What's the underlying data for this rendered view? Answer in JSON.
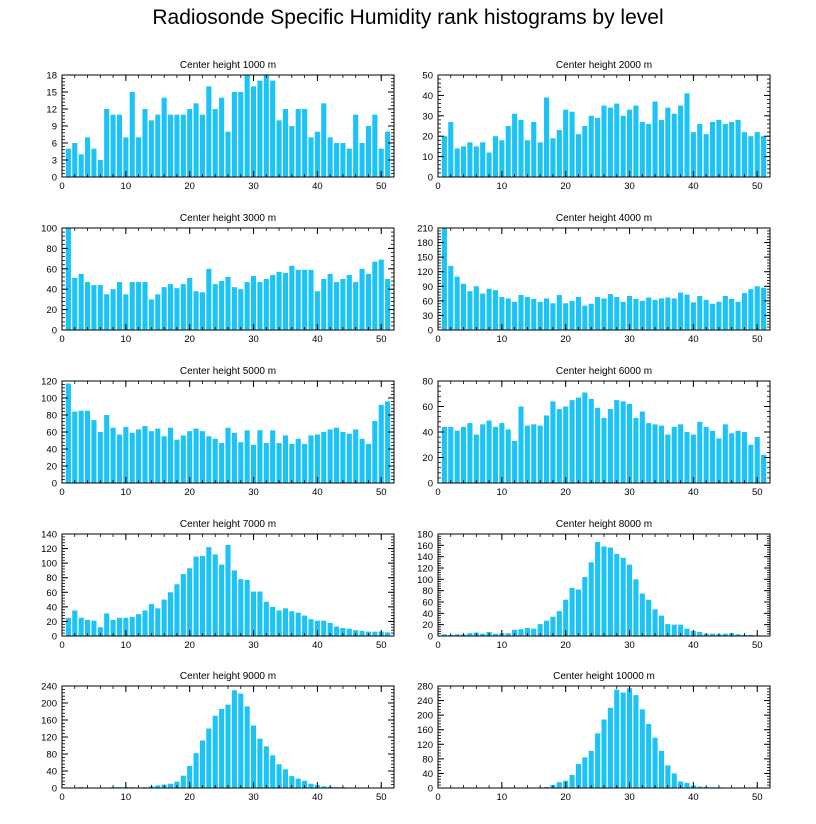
{
  "title": "Radiosonde Specific Humidity rank histograms by level",
  "bar_color": "#1cc3f7",
  "chart_data": [
    {
      "type": "bar",
      "title": "Center height 1000 m",
      "xlim": [
        0,
        52
      ],
      "xticks": [
        0,
        10,
        20,
        30,
        40,
        50
      ],
      "ylim": [
        0,
        18
      ],
      "yticks": [
        0,
        3,
        6,
        9,
        12,
        15,
        18
      ],
      "values": [
        5,
        6,
        4,
        7,
        5,
        3,
        12,
        11,
        11,
        7,
        15,
        7,
        12,
        10,
        11,
        14,
        11,
        11,
        11,
        12,
        13,
        11,
        16,
        12,
        14,
        8,
        15,
        15,
        18,
        16,
        17,
        18,
        17,
        10,
        12,
        9,
        12,
        12,
        7,
        8,
        13,
        7,
        6,
        6,
        5,
        11,
        6,
        9,
        11,
        5,
        8
      ]
    },
    {
      "type": "bar",
      "title": "Center height 2000 m",
      "xlim": [
        0,
        52
      ],
      "xticks": [
        0,
        10,
        20,
        30,
        40,
        50
      ],
      "ylim": [
        0,
        50
      ],
      "yticks": [
        0,
        10,
        20,
        30,
        40,
        50
      ],
      "values": [
        20,
        27,
        14,
        15,
        17,
        15,
        17,
        12,
        20,
        18,
        25,
        31,
        28,
        18,
        27,
        17,
        39,
        19,
        23,
        33,
        32,
        21,
        25,
        30,
        29,
        35,
        34,
        36,
        30,
        33,
        35,
        27,
        26,
        37,
        28,
        34,
        31,
        35,
        41,
        22,
        26,
        21,
        27,
        28,
        26,
        27,
        28,
        22,
        20,
        22,
        20
      ]
    },
    {
      "type": "bar",
      "title": "Center height 3000 m",
      "xlim": [
        0,
        52
      ],
      "xticks": [
        0,
        10,
        20,
        30,
        40,
        50
      ],
      "ylim": [
        0,
        100
      ],
      "yticks": [
        0,
        20,
        40,
        60,
        80,
        100
      ],
      "values": [
        100,
        51,
        55,
        47,
        44,
        44,
        35,
        40,
        47,
        35,
        47,
        47,
        47,
        30,
        35,
        42,
        45,
        41,
        45,
        51,
        38,
        37,
        60,
        45,
        48,
        52,
        42,
        40,
        47,
        53,
        47,
        50,
        54,
        57,
        56,
        63,
        59,
        59,
        59,
        38,
        50,
        55,
        47,
        50,
        54,
        47,
        60,
        55,
        67,
        69,
        50
      ]
    },
    {
      "type": "bar",
      "title": "Center height 4000 m",
      "xlim": [
        0,
        52
      ],
      "xticks": [
        0,
        10,
        20,
        30,
        40,
        50
      ],
      "ylim": [
        0,
        210
      ],
      "yticks": [
        0,
        30,
        60,
        90,
        120,
        150,
        180,
        210
      ],
      "values": [
        210,
        132,
        110,
        95,
        80,
        90,
        75,
        85,
        82,
        68,
        65,
        58,
        72,
        68,
        64,
        58,
        65,
        55,
        72,
        55,
        60,
        68,
        50,
        54,
        68,
        65,
        74,
        68,
        58,
        70,
        64,
        60,
        67,
        62,
        65,
        67,
        65,
        77,
        73,
        57,
        70,
        62,
        54,
        58,
        70,
        64,
        58,
        76,
        84,
        90,
        87
      ]
    },
    {
      "type": "bar",
      "title": "Center height 5000 m",
      "xlim": [
        0,
        52
      ],
      "xticks": [
        0,
        10,
        20,
        30,
        40,
        50
      ],
      "ylim": [
        0,
        120
      ],
      "yticks": [
        0,
        20,
        40,
        60,
        80,
        100,
        120
      ],
      "values": [
        117,
        84,
        85,
        85,
        74,
        60,
        80,
        65,
        57,
        66,
        59,
        63,
        67,
        61,
        64,
        55,
        65,
        51,
        56,
        61,
        64,
        61,
        55,
        52,
        47,
        65,
        59,
        48,
        62,
        45,
        62,
        47,
        62,
        47,
        56,
        46,
        52,
        46,
        56,
        57,
        60,
        63,
        65,
        60,
        58,
        63,
        52,
        46,
        73,
        92,
        96
      ]
    },
    {
      "type": "bar",
      "title": "Center height 6000 m",
      "xlim": [
        0,
        52
      ],
      "xticks": [
        0,
        10,
        20,
        30,
        40,
        50
      ],
      "ylim": [
        0,
        80
      ],
      "yticks": [
        0,
        20,
        40,
        60,
        80
      ],
      "values": [
        44,
        44,
        41,
        44,
        47,
        38,
        46,
        49,
        44,
        47,
        42,
        33,
        60,
        45,
        46,
        45,
        53,
        64,
        58,
        60,
        65,
        67,
        71,
        66,
        59,
        51,
        58,
        65,
        64,
        62,
        51,
        56,
        47,
        46,
        45,
        38,
        44,
        46,
        40,
        38,
        48,
        44,
        41,
        35,
        46,
        39,
        41,
        40,
        30,
        36,
        22
      ]
    },
    {
      "type": "bar",
      "title": "Center height 7000 m",
      "xlim": [
        0,
        52
      ],
      "xticks": [
        0,
        10,
        20,
        30,
        40,
        50
      ],
      "ylim": [
        0,
        140
      ],
      "yticks": [
        0,
        20,
        40,
        60,
        80,
        100,
        120,
        140
      ],
      "values": [
        25,
        35,
        25,
        22,
        21,
        12,
        31,
        22,
        25,
        25,
        26,
        30,
        35,
        44,
        38,
        50,
        60,
        71,
        85,
        93,
        109,
        110,
        122,
        112,
        98,
        125,
        90,
        78,
        77,
        61,
        61,
        47,
        40,
        35,
        38,
        34,
        32,
        28,
        23,
        21,
        21,
        18,
        13,
        11,
        10,
        8,
        7,
        6,
        6,
        6,
        5
      ]
    },
    {
      "type": "bar",
      "title": "Center height 8000 m",
      "xlim": [
        0,
        52
      ],
      "xticks": [
        0,
        10,
        20,
        30,
        40,
        50
      ],
      "ylim": [
        0,
        180
      ],
      "yticks": [
        0,
        20,
        40,
        60,
        80,
        100,
        120,
        140,
        160,
        180
      ],
      "values": [
        3,
        2,
        3,
        3,
        5,
        6,
        4,
        7,
        4,
        5,
        5,
        11,
        12,
        14,
        13,
        21,
        27,
        34,
        44,
        64,
        85,
        82,
        104,
        130,
        166,
        158,
        156,
        145,
        138,
        126,
        100,
        75,
        64,
        47,
        36,
        21,
        20,
        20,
        13,
        9,
        7,
        4,
        4,
        3,
        4,
        5,
        3,
        2,
        2,
        1,
        1
      ]
    },
    {
      "type": "bar",
      "title": "Center height 9000 m",
      "xlim": [
        0,
        52
      ],
      "xticks": [
        0,
        10,
        20,
        30,
        40,
        50
      ],
      "ylim": [
        0,
        240
      ],
      "yticks": [
        0,
        40,
        80,
        120,
        160,
        200,
        240
      ],
      "values": [
        1,
        1,
        2,
        1,
        1,
        1,
        1,
        2,
        2,
        2,
        2,
        1,
        2,
        4,
        6,
        8,
        10,
        15,
        29,
        52,
        82,
        112,
        140,
        170,
        186,
        196,
        230,
        222,
        192,
        147,
        116,
        98,
        77,
        56,
        44,
        28,
        22,
        17,
        10,
        7,
        4,
        3,
        2,
        2,
        1,
        1,
        1,
        1,
        1,
        1,
        1
      ]
    },
    {
      "type": "bar",
      "title": "Center height 10000 m",
      "xlim": [
        0,
        52
      ],
      "xticks": [
        0,
        10,
        20,
        30,
        40,
        50
      ],
      "ylim": [
        0,
        280
      ],
      "yticks": [
        0,
        40,
        80,
        120,
        160,
        200,
        240,
        280
      ],
      "values": [
        1,
        1,
        1,
        1,
        1,
        1,
        1,
        1,
        1,
        1,
        1,
        1,
        1,
        1,
        1,
        2,
        3,
        8,
        16,
        20,
        36,
        66,
        84,
        102,
        150,
        188,
        220,
        270,
        262,
        274,
        255,
        216,
        176,
        138,
        102,
        62,
        40,
        18,
        14,
        7,
        4,
        3,
        2,
        2,
        1,
        1,
        1,
        1,
        1,
        1,
        1
      ]
    }
  ]
}
